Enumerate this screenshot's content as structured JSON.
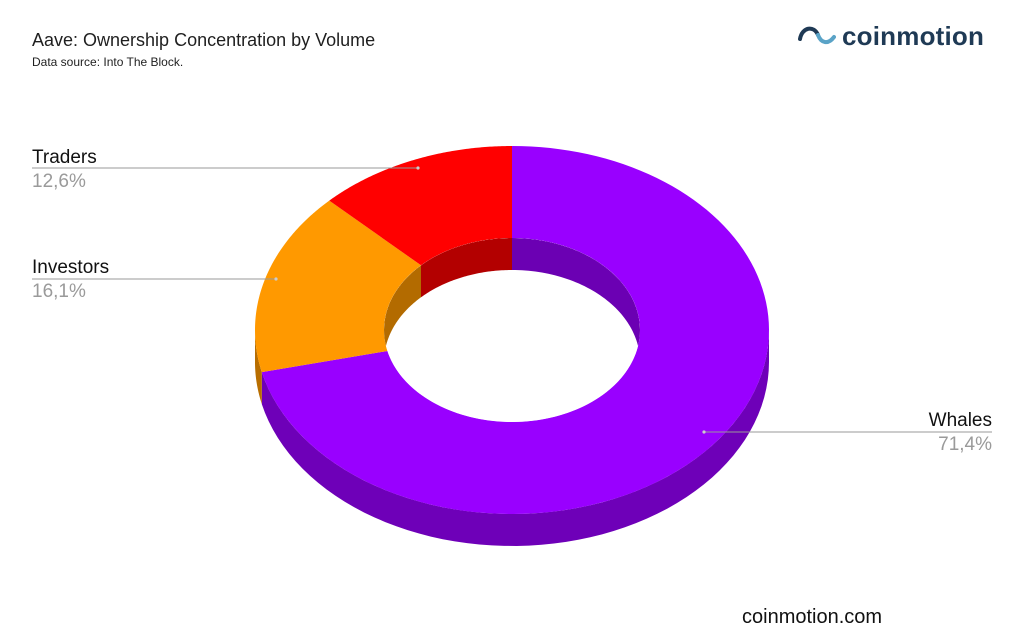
{
  "title": "Aave: Ownership Concentration by Volume",
  "subtitle": "Data source: Into The Block.",
  "brand": {
    "name": "coinmotion",
    "icon": "coinmotion-logo-icon",
    "color": "#1f3a55"
  },
  "footer": "coinmotion.com",
  "chart_data": {
    "type": "pie",
    "title": "Aave: Ownership Concentration by Volume",
    "style": "3d-donut",
    "slices": [
      {
        "label": "Whales",
        "value": 71.4,
        "value_label": "71,4%",
        "color": "#9900ff"
      },
      {
        "label": "Investors",
        "value": 16.1,
        "value_label": "16,1%",
        "color": "#ff9900"
      },
      {
        "label": "Traders",
        "value": 12.6,
        "value_label": "12,6%",
        "color": "#ff0000"
      }
    ],
    "legend": "none"
  }
}
